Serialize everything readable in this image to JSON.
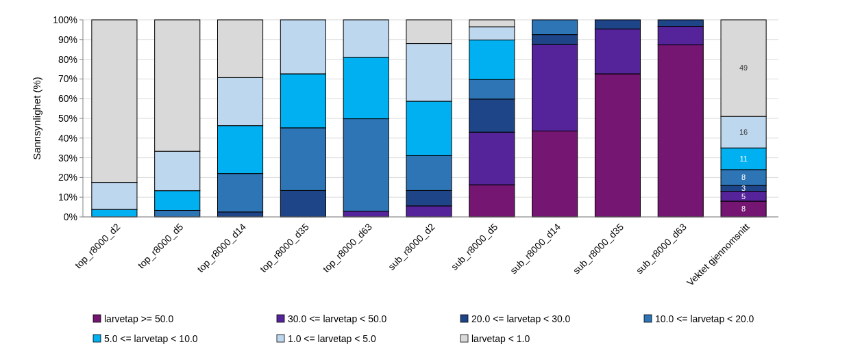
{
  "chart_data": {
    "type": "bar",
    "stacked": true,
    "ylabel": "Sannsynlighet (%)",
    "categories": [
      "top_r8000_d2",
      "top_r8000_d5",
      "top_r8000_d14",
      "top_r8000_d35",
      "top_r8000_d63",
      "sub_r8000_d2",
      "sub_r8000_d5",
      "sub_r8000_d14",
      "sub_r8000_d35",
      "sub_r8000_d63",
      "Vektet gjennomsnitt"
    ],
    "series": [
      {
        "name": "larvetap >= 50.0",
        "color": "#741672",
        "values": [
          0,
          0,
          0,
          0,
          0,
          0,
          16.3,
          43.6,
          72.6,
          87.3,
          8
        ],
        "value_labels": [
          null,
          null,
          null,
          null,
          null,
          null,
          null,
          null,
          null,
          null,
          "8"
        ]
      },
      {
        "name": "30.0 <= larvetap < 50.0",
        "color": "#55249a",
        "values": [
          0,
          0,
          0,
          0,
          2.9,
          5.6,
          26.7,
          43.9,
          22.8,
          9.4,
          5
        ],
        "value_labels": [
          null,
          null,
          null,
          null,
          null,
          null,
          null,
          null,
          null,
          null,
          "5"
        ]
      },
      {
        "name": "20.0 <= larvetap < 30.0",
        "color": "#1f4589",
        "values": [
          0,
          0,
          2.5,
          13.4,
          0,
          7.8,
          16.8,
          5,
          4.6,
          3.3,
          3
        ],
        "value_labels": [
          null,
          null,
          null,
          null,
          null,
          null,
          null,
          null,
          null,
          null,
          "3"
        ]
      },
      {
        "name": "10.0 <= larvetap < 20.0",
        "color": "#2e75b6",
        "values": [
          0,
          3.3,
          19.5,
          31.8,
          46.9,
          17.7,
          9.9,
          7.5,
          0,
          0,
          8
        ],
        "value_labels": [
          null,
          null,
          null,
          null,
          null,
          null,
          null,
          null,
          null,
          null,
          "8"
        ]
      },
      {
        "name": "5.0 <= larvetap < 10.0",
        "color": "#00b0f0",
        "values": [
          3.8,
          10,
          24.3,
          27.4,
          31.2,
          27.6,
          20.1,
          0,
          0,
          0,
          11
        ],
        "value_labels": [
          null,
          null,
          null,
          null,
          null,
          null,
          null,
          null,
          null,
          null,
          "11"
        ]
      },
      {
        "name": "1.0 <= larvetap < 5.0",
        "color": "#bdd7ee",
        "values": [
          13.7,
          20,
          24.4,
          27.4,
          19,
          29.3,
          6.7,
          0,
          0,
          0,
          16
        ],
        "value_labels": [
          null,
          null,
          null,
          null,
          null,
          null,
          null,
          null,
          null,
          null,
          "16"
        ]
      },
      {
        "name": "larvetap < 1.0",
        "color": "#d9d9d9",
        "values": [
          82.5,
          66.7,
          29.3,
          0,
          0,
          12,
          3.5,
          0,
          0,
          0,
          49
        ],
        "value_labels": [
          null,
          null,
          null,
          null,
          null,
          null,
          null,
          null,
          null,
          null,
          "49"
        ]
      }
    ],
    "ylim": [
      0,
      100
    ],
    "yticks": [
      {
        "value": 0,
        "label": "0%"
      },
      {
        "value": 10,
        "label": "10%"
      },
      {
        "value": 20,
        "label": "20%"
      },
      {
        "value": 30,
        "label": "30%"
      },
      {
        "value": 40,
        "label": "40%"
      },
      {
        "value": 50,
        "label": "50%"
      },
      {
        "value": 60,
        "label": "60%"
      },
      {
        "value": 70,
        "label": "70%"
      },
      {
        "value": 80,
        "label": "80%"
      },
      {
        "value": 90,
        "label": "90%"
      },
      {
        "value": 100,
        "label": "100%"
      }
    ],
    "grid": "y",
    "legend": "bottom"
  }
}
